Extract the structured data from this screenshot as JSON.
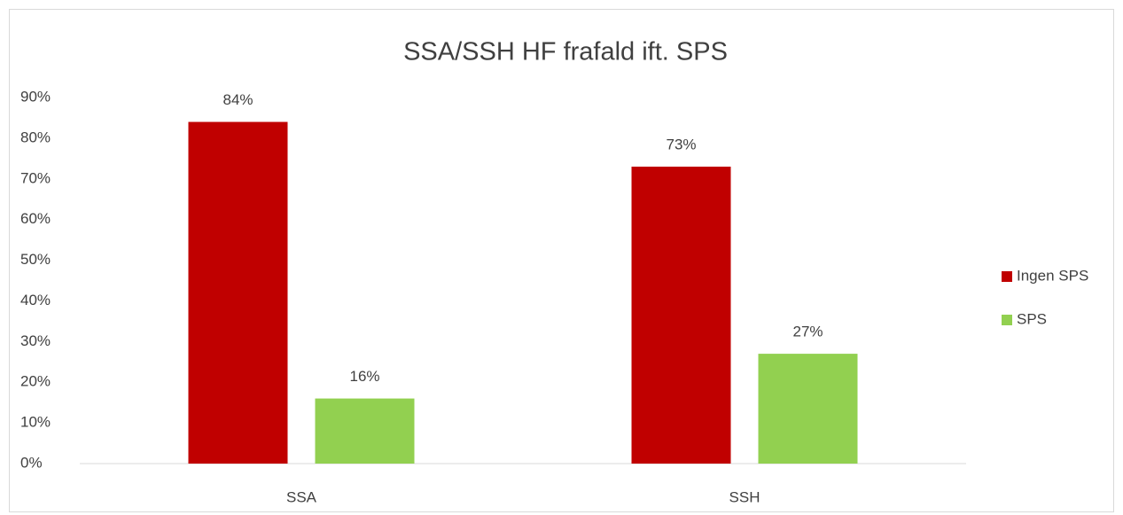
{
  "chart_data": {
    "type": "bar",
    "title": "SSA/SSH HF frafald ift. SPS",
    "categories": [
      "SSA",
      "SSH"
    ],
    "series": [
      {
        "name": "Ingen SPS",
        "color": "#c00000",
        "values": [
          84,
          73
        ],
        "value_labels": [
          "84%",
          "73%"
        ]
      },
      {
        "name": "SPS",
        "color": "#92d050",
        "values": [
          16,
          27
        ],
        "value_labels": [
          "16%",
          "27%"
        ]
      }
    ],
    "ylim": [
      0,
      90
    ],
    "yticks": [
      {
        "value": 0,
        "label": "0%"
      },
      {
        "value": 10,
        "label": "10%"
      },
      {
        "value": 20,
        "label": "20%"
      },
      {
        "value": 30,
        "label": "30%"
      },
      {
        "value": 40,
        "label": "40%"
      },
      {
        "value": 50,
        "label": "50%"
      },
      {
        "value": 60,
        "label": "60%"
      },
      {
        "value": 70,
        "label": "70%"
      },
      {
        "value": 80,
        "label": "80%"
      },
      {
        "value": 90,
        "label": "90%"
      }
    ],
    "grid": false,
    "legend": "right"
  }
}
